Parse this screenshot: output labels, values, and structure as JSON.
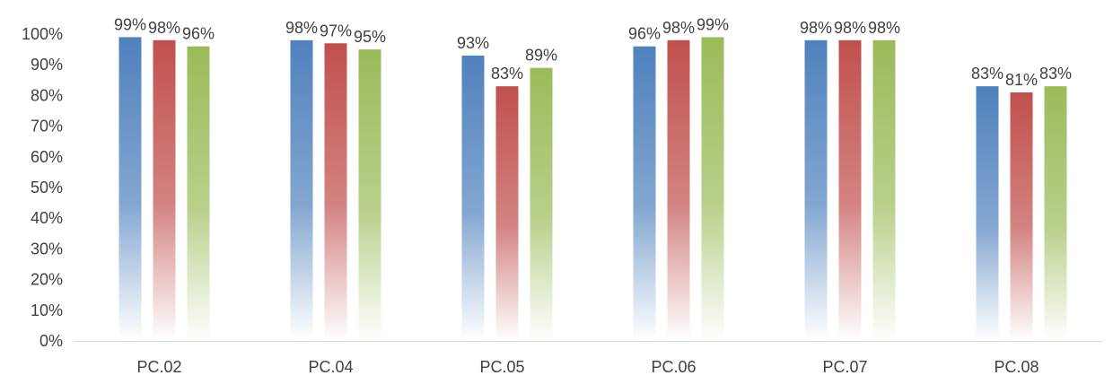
{
  "chart_data": {
    "type": "bar",
    "categories": [
      "PC.02",
      "PC.04",
      "PC.05",
      "PC.06",
      "PC.07",
      "PC.08"
    ],
    "series": [
      {
        "values": [
          99,
          98,
          93,
          96,
          98,
          83
        ],
        "color": "#4F81BD"
      },
      {
        "values": [
          98,
          97,
          83,
          98,
          98,
          81
        ],
        "color": "#C0504D"
      },
      {
        "values": [
          96,
          95,
          89,
          99,
          98,
          83
        ],
        "color": "#9BBB59"
      }
    ],
    "data_labels": [
      [
        "99%",
        "98%",
        "96%"
      ],
      [
        "98%",
        "97%",
        "95%"
      ],
      [
        "93%",
        "83%",
        "89%"
      ],
      [
        "96%",
        "98%",
        "99%"
      ],
      [
        "98%",
        "98%",
        "98%"
      ],
      [
        "83%",
        "81%",
        "83%"
      ]
    ],
    "y_ticks": [
      "0%",
      "10%",
      "20%",
      "30%",
      "40%",
      "50%",
      "60%",
      "70%",
      "80%",
      "90%",
      "100%"
    ],
    "ylim": [
      0,
      100
    ],
    "y_unit": "%",
    "grid": false,
    "legend": "none",
    "bar_fill": "gradient fading to white toward the baseline"
  }
}
